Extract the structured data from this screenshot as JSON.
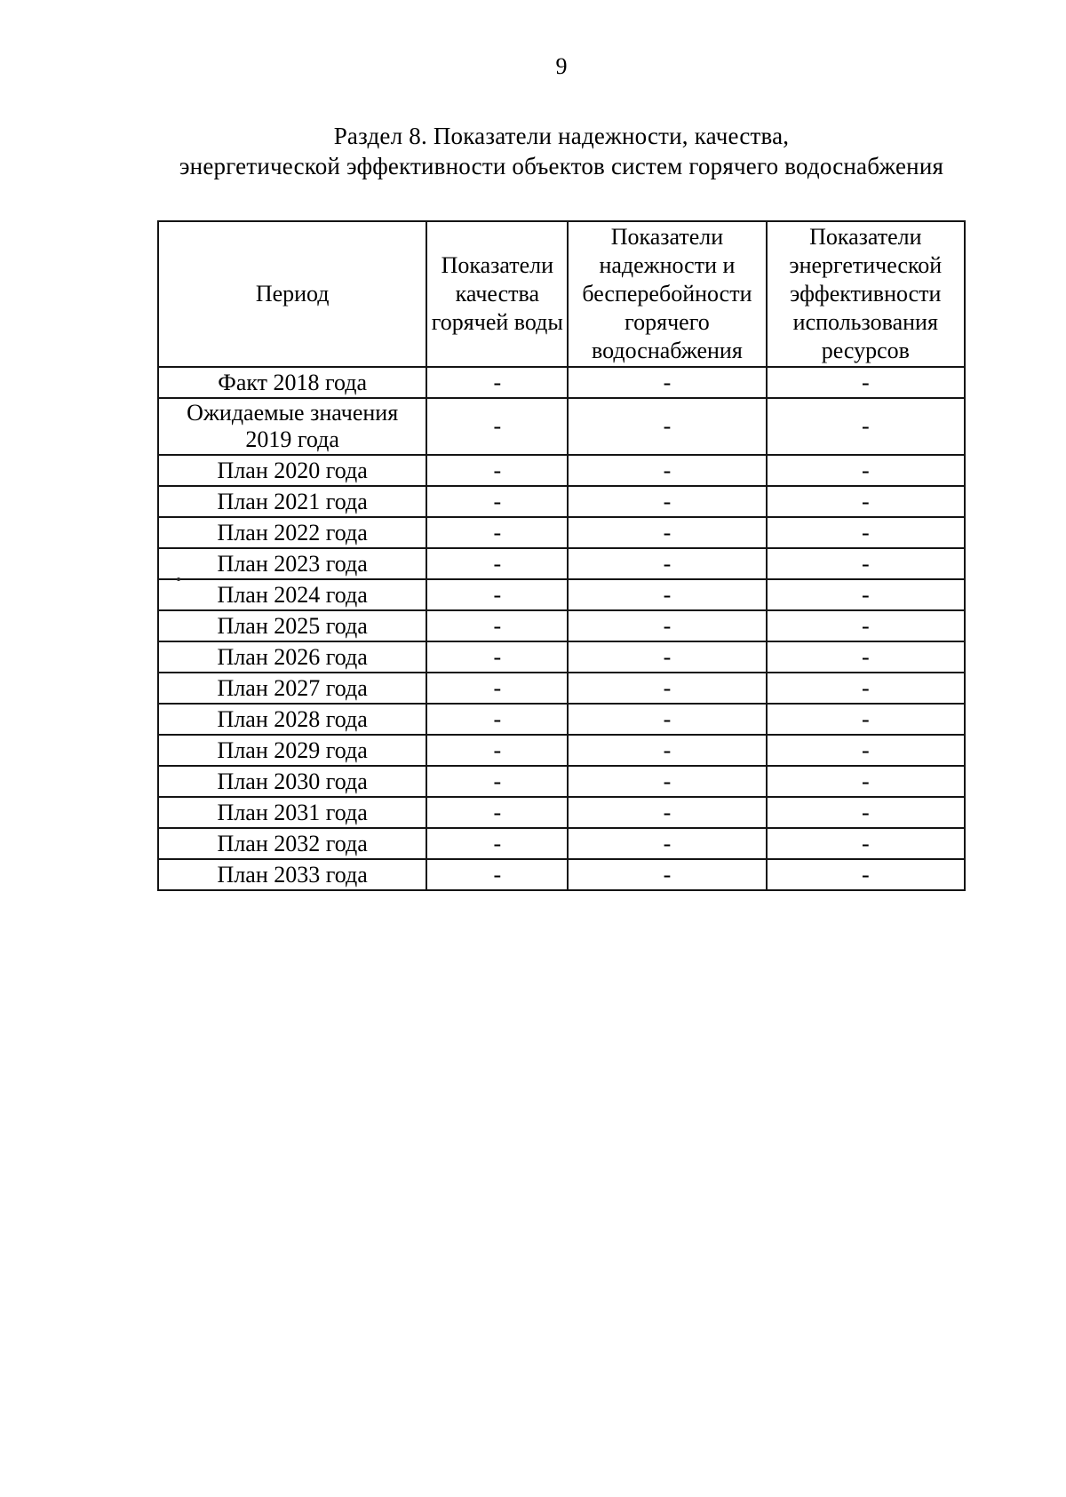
{
  "page": {
    "number": "9",
    "title": {
      "line1": "Раздел 8. Показатели надежности, качества,",
      "line2": "энергетической эффективности объектов систем горячего водоснабжения"
    }
  },
  "table": {
    "columns": [
      "Период",
      "Показатели качества горячей воды",
      "Показатели надежности и бесперебойности горячего водоснабжения",
      "Показатели энергетической эффективности использования ресурсов"
    ],
    "rows": [
      {
        "period": "Факт 2018 года",
        "values": [
          "-",
          "-",
          "-"
        ]
      },
      {
        "period": "Ожидаемые значения 2019 года",
        "values": [
          "-",
          "-",
          "-"
        ]
      },
      {
        "period": "План 2020 года",
        "values": [
          "-",
          "-",
          "-"
        ]
      },
      {
        "period": "План 2021 года",
        "values": [
          "-",
          "-",
          "-"
        ]
      },
      {
        "period": "План 2022 года",
        "values": [
          "-",
          "-",
          "-"
        ]
      },
      {
        "period": "План 2023 года",
        "values": [
          "-",
          "-",
          "-"
        ]
      },
      {
        "period": "План 2024 года",
        "values": [
          "-",
          "-",
          "-"
        ]
      },
      {
        "period": "План 2025 года",
        "values": [
          "-",
          "-",
          "-"
        ]
      },
      {
        "period": "План 2026 года",
        "values": [
          "-",
          "-",
          "-"
        ]
      },
      {
        "period": "План 2027 года",
        "values": [
          "-",
          "-",
          "-"
        ]
      },
      {
        "period": "План 2028 года",
        "values": [
          "-",
          "-",
          "-"
        ]
      },
      {
        "period": "План 2029 года",
        "values": [
          "-",
          "-",
          "-"
        ]
      },
      {
        "period": "План 2030 года",
        "values": [
          "-",
          "-",
          "-"
        ]
      },
      {
        "period": "План 2031 года",
        "values": [
          "-",
          "-",
          "-"
        ]
      },
      {
        "period": "План 2032 года",
        "values": [
          "-",
          "-",
          "-"
        ]
      },
      {
        "period": "План 2033 года",
        "values": [
          "-",
          "-",
          "-"
        ]
      }
    ]
  }
}
